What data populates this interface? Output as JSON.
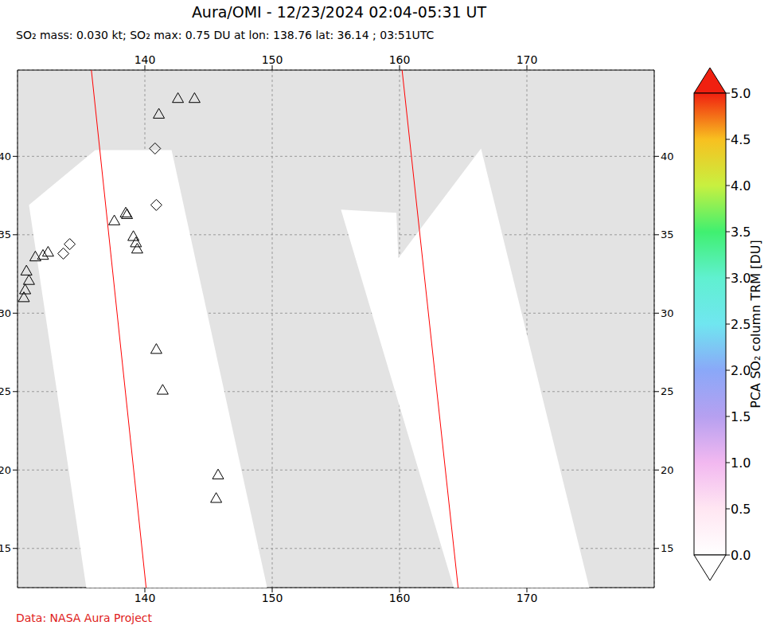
{
  "chart_data": {
    "type": "map",
    "title": "Aura/OMI - 12/23/2024 02:04-05:31 UT",
    "subtitle": "SO₂ mass: 0.030 kt; SO₂ max: 0.75 DU at lon: 138.76 lat: 36.14 ; 03:51UTC",
    "credit": "Data: NASA Aura Project",
    "xlim": [
      130,
      180
    ],
    "xticks": [
      140,
      150,
      160,
      170
    ],
    "ylim": [
      12.5,
      45.5
    ],
    "yticks": [
      15,
      20,
      25,
      30,
      35,
      40
    ],
    "grid": true,
    "color": "#e3e3e3",
    "swaths": {
      "color": "#ffffff",
      "polygons": [
        [
          [
            136.1,
            40.4
          ],
          [
            142.1,
            40.4
          ],
          [
            149.6,
            12.5
          ],
          [
            135.4,
            12.5
          ],
          [
            130.9,
            36.9
          ]
        ],
        [
          [
            155.4,
            36.6
          ],
          [
            159.75,
            36.4
          ],
          [
            159.9,
            33.5
          ],
          [
            166.4,
            40.5
          ],
          [
            174.9,
            12.5
          ],
          [
            164.25,
            12.5
          ]
        ]
      ]
    },
    "orbit_tracks": {
      "color": "#ff0000",
      "lines": [
        [
          [
            135.8,
            45.5
          ],
          [
            140.1,
            12.5
          ]
        ],
        [
          [
            160.2,
            45.5
          ],
          [
            164.6,
            12.5
          ]
        ]
      ]
    },
    "markers": [
      {
        "marker": "triangle",
        "points": [
          [
            142.6,
            43.7
          ],
          [
            143.9,
            43.7
          ],
          [
            141.1,
            42.7
          ],
          [
            137.6,
            35.9
          ],
          [
            138.5,
            36.4
          ],
          [
            138.6,
            36.3
          ],
          [
            139.1,
            34.9
          ],
          [
            139.3,
            34.5
          ],
          [
            139.4,
            34.1
          ],
          [
            130.7,
            32.7
          ],
          [
            130.9,
            32.1
          ],
          [
            130.6,
            31.5
          ],
          [
            130.5,
            31.0
          ],
          [
            131.4,
            33.6
          ],
          [
            132.0,
            33.7
          ],
          [
            132.4,
            33.9
          ],
          [
            140.9,
            27.7
          ],
          [
            141.4,
            25.1
          ],
          [
            145.75,
            19.7
          ],
          [
            145.6,
            18.2
          ]
        ]
      },
      {
        "marker": "diamond",
        "points": [
          [
            140.8,
            40.5
          ],
          [
            140.9,
            36.9
          ],
          [
            134.1,
            34.4
          ],
          [
            133.6,
            33.8
          ]
        ]
      }
    ],
    "colorbar": {
      "range": [
        0,
        5
      ],
      "ticks": [
        {
          "value": 0,
          "label": "0.0"
        },
        {
          "value": 0.5,
          "label": "0.5"
        },
        {
          "value": 1,
          "label": "1.0"
        },
        {
          "value": 1.5,
          "label": "1.5"
        },
        {
          "value": 2,
          "label": "2.0"
        },
        {
          "value": 2.5,
          "label": "2.5"
        },
        {
          "value": 3,
          "label": "3.0"
        },
        {
          "value": 3.5,
          "label": "3.5"
        },
        {
          "value": 4,
          "label": "4.0"
        },
        {
          "value": 4.5,
          "label": "4.5"
        },
        {
          "value": 5,
          "label": "5.0"
        }
      ],
      "label": "PCA SO₂ column TRM [DU]",
      "stops": [
        [
          0,
          "#ffffff"
        ],
        [
          0.5,
          "#ffe6f2"
        ],
        [
          1,
          "#f2b8f0"
        ],
        [
          1.5,
          "#b6a0f0"
        ],
        [
          2,
          "#8aa8f8"
        ],
        [
          2.5,
          "#70e6f0"
        ],
        [
          3,
          "#60f0d0"
        ],
        [
          3.5,
          "#40f070"
        ],
        [
          4,
          "#c8f040"
        ],
        [
          4.5,
          "#f8c020"
        ],
        [
          5,
          "#f02010"
        ]
      ]
    }
  }
}
